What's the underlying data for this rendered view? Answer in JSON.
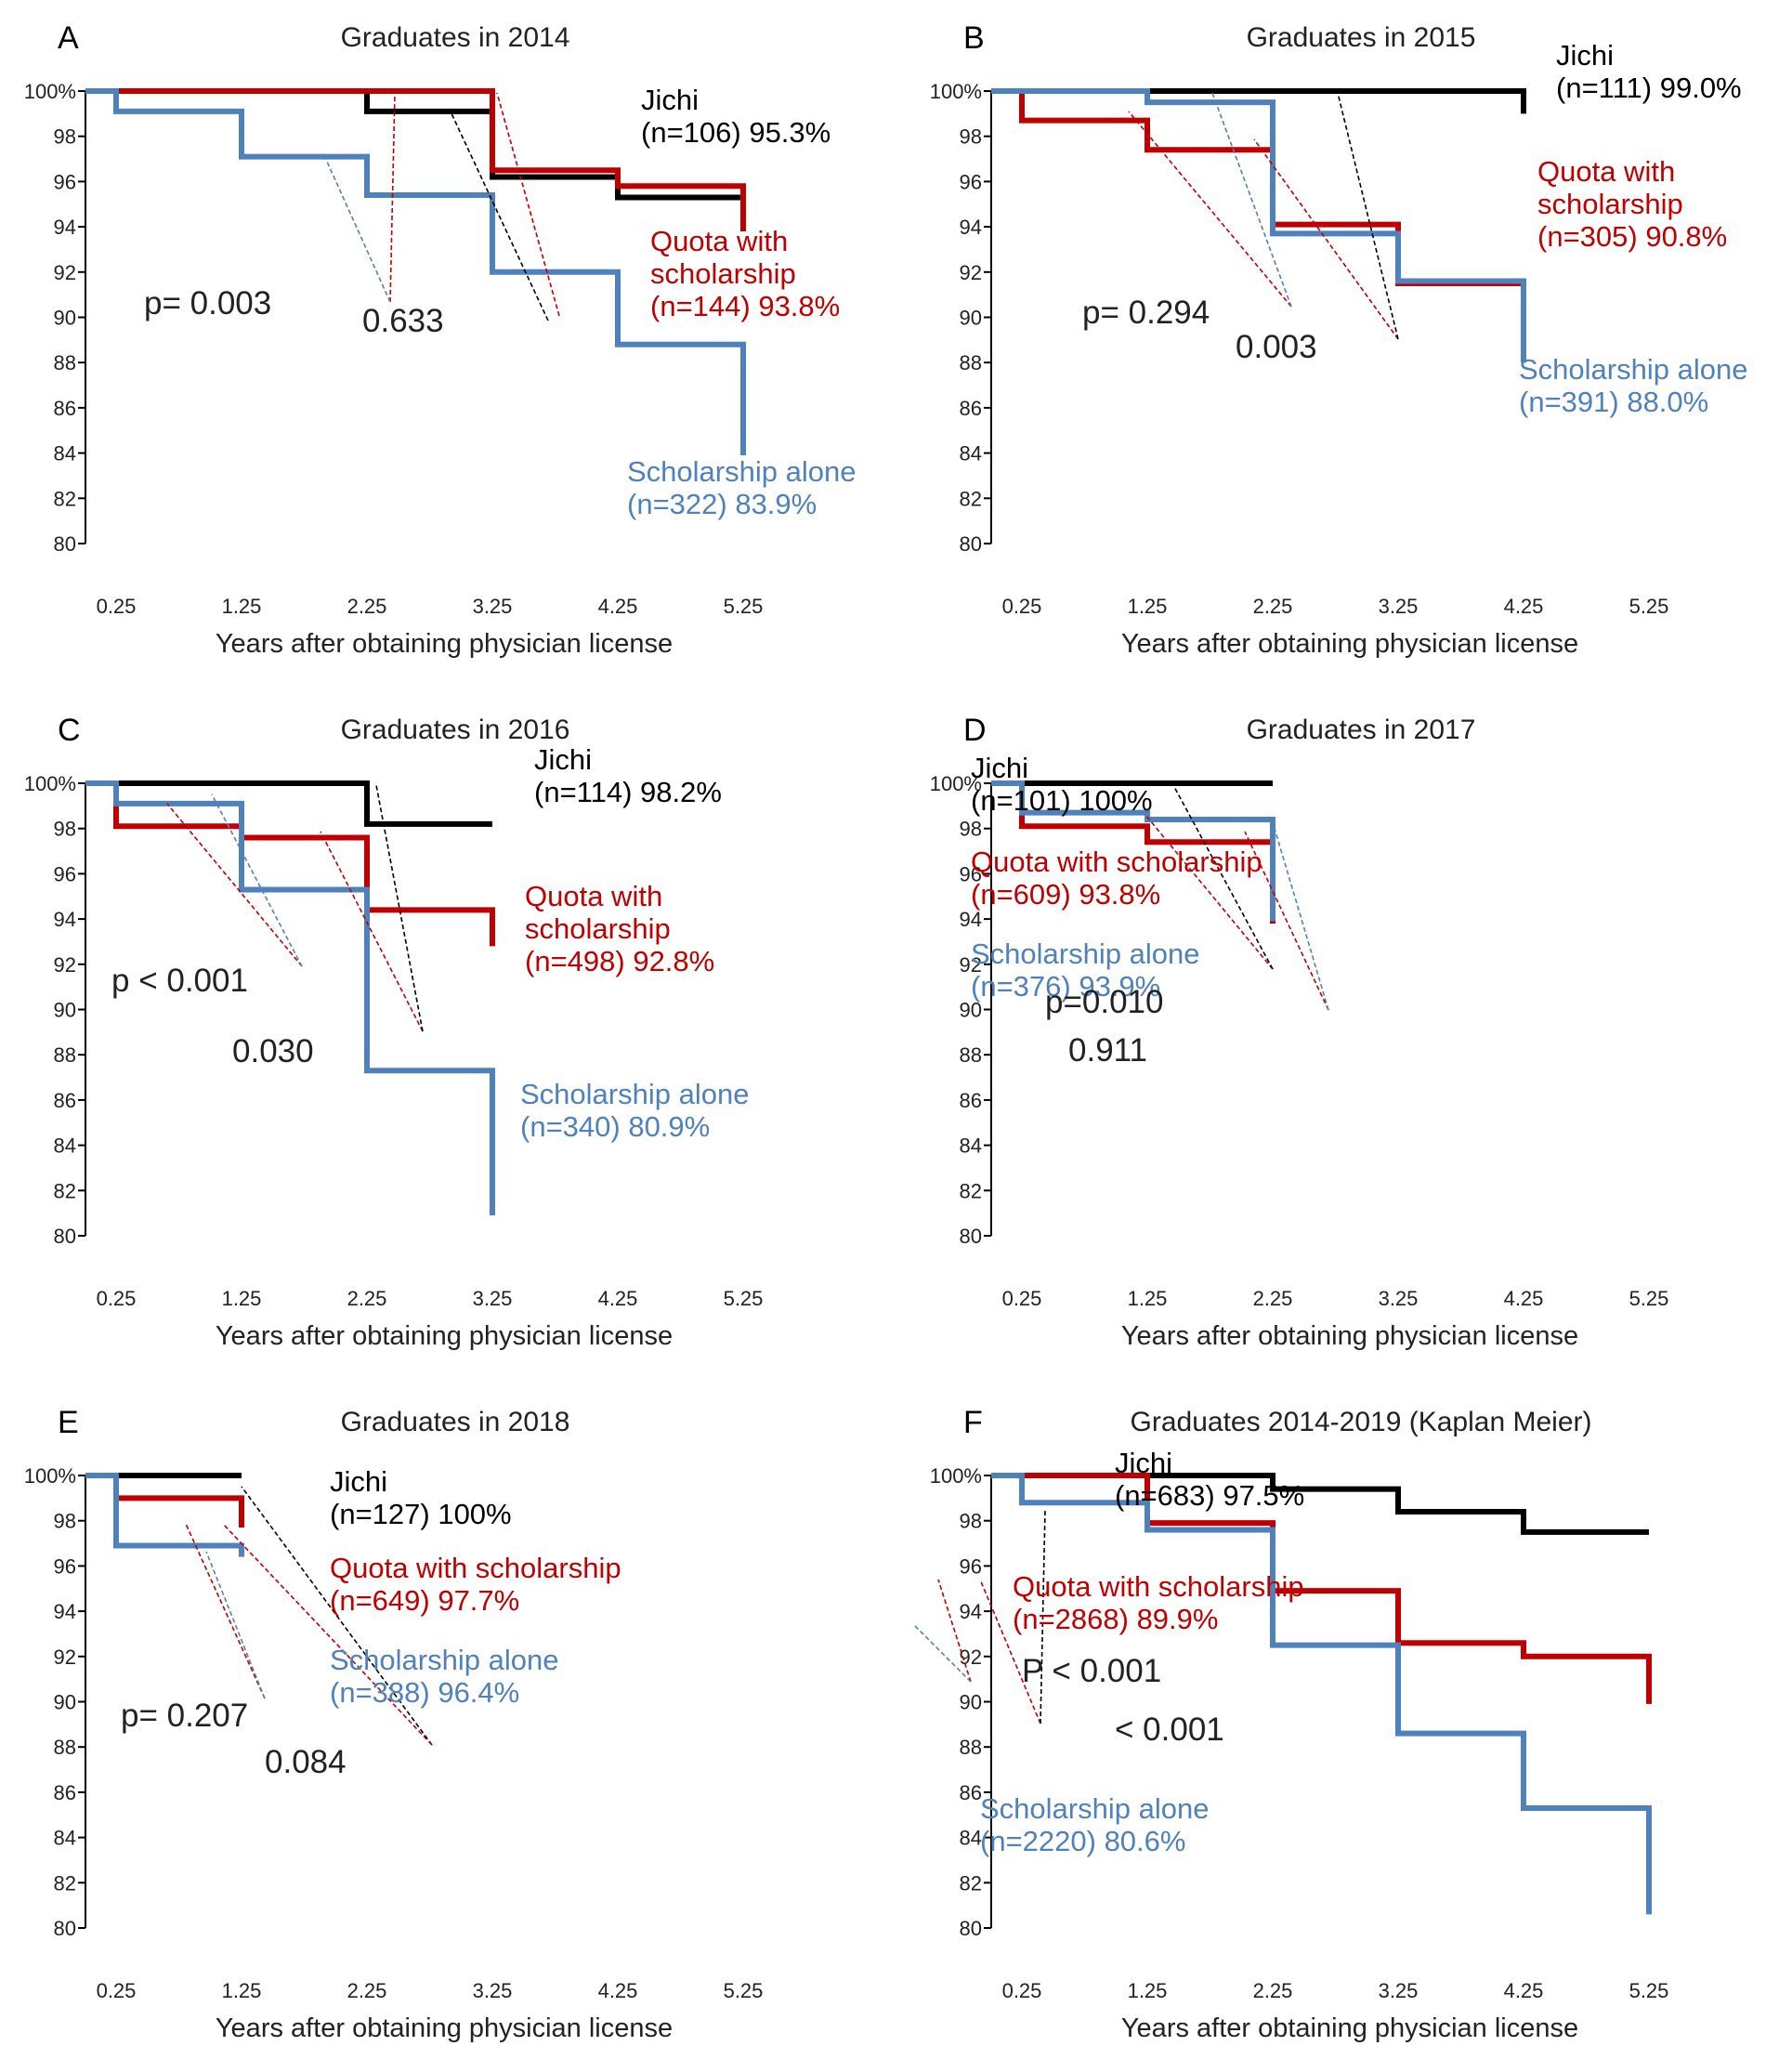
{
  "colors": {
    "jichi": "#000000",
    "quota": "#c00000",
    "scholarship": "#4f81bd"
  },
  "panels": [
    {
      "label": "A",
      "title": "Graduates in 2014",
      "chart_data": {
        "type": "line",
        "step": true,
        "xlabel": "Years after obtaining physician license",
        "ylabel": "",
        "xticks": [
          "0.25",
          "1.25",
          "2.25",
          "3.25",
          "4.25",
          "5.25"
        ],
        "yticks": [
          "100%",
          "98",
          "96",
          "94",
          "92",
          "90",
          "88",
          "86",
          "84",
          "82",
          "80"
        ],
        "xlim": [
          0.25,
          5.25
        ],
        "ylim": [
          80,
          100
        ],
        "series": [
          {
            "name": "Jichi",
            "color": "#000000",
            "x": [
              0,
              2.25,
              3.25,
              4.25,
              5.25
            ],
            "y": [
              100,
              99.1,
              96.2,
              95.3,
              95.3
            ]
          },
          {
            "name": "Quota with scholarship",
            "color": "#c00000",
            "x": [
              0,
              2.25,
              3.25,
              4.25,
              5.25
            ],
            "y": [
              100,
              100,
              96.5,
              95.8,
              93.8
            ]
          },
          {
            "name": "Scholarship alone",
            "color": "#4f81bd",
            "x": [
              0,
              0.25,
              1.25,
              2.25,
              3.25,
              4.25,
              5.25
            ],
            "y": [
              100,
              99.1,
              97.1,
              95.4,
              92.0,
              88.8,
              83.9
            ]
          }
        ],
        "annotations": [
          {
            "lines": [
              "Jichi",
              "(n=106) 95.3%"
            ],
            "color": "#000000"
          },
          {
            "lines": [
              "Quota with",
              "scholarship",
              "(n=144) 93.8%"
            ],
            "color": "#c00000"
          },
          {
            "lines": [
              "Scholarship alone",
              "(n=322) 83.9%"
            ],
            "color": "#4f81bd"
          }
        ],
        "pvalues": [
          "p= 0.003",
          "0.633"
        ]
      }
    },
    {
      "label": "B",
      "title": "Graduates in 2015",
      "chart_data": {
        "type": "line",
        "step": true,
        "xlabel": "Years after obtaining physician license",
        "ylabel": "",
        "xticks": [
          "0.25",
          "1.25",
          "2.25",
          "3.25",
          "4.25",
          "5.25"
        ],
        "yticks": [
          "100%",
          "98",
          "96",
          "94",
          "92",
          "90",
          "88",
          "86",
          "84",
          "82",
          "80"
        ],
        "xlim": [
          0.25,
          5.25
        ],
        "ylim": [
          80,
          100
        ],
        "series": [
          {
            "name": "Jichi",
            "color": "#000000",
            "x": [
              0,
              4.25
            ],
            "y": [
              100,
              99.0
            ]
          },
          {
            "name": "Quota with scholarship",
            "color": "#c00000",
            "x": [
              0,
              0.25,
              1.25,
              2.25,
              3.25,
              4.25
            ],
            "y": [
              100,
              98.7,
              97.4,
              94.1,
              91.5,
              90.8
            ]
          },
          {
            "name": "Scholarship alone",
            "color": "#4f81bd",
            "x": [
              0,
              1.25,
              2.25,
              3.25,
              4.25
            ],
            "y": [
              100,
              99.5,
              93.7,
              91.6,
              88.0
            ]
          }
        ],
        "annotations": [
          {
            "lines": [
              "Jichi",
              "(n=111) 99.0%"
            ],
            "color": "#000000"
          },
          {
            "lines": [
              "Quota with",
              "scholarship",
              "(n=305) 90.8%"
            ],
            "color": "#c00000"
          },
          {
            "lines": [
              "Scholarship alone",
              "(n=391) 88.0%"
            ],
            "color": "#4f81bd"
          }
        ],
        "pvalues": [
          "p= 0.294",
          "0.003"
        ]
      }
    },
    {
      "label": "C",
      "title": "Graduates in 2016",
      "chart_data": {
        "type": "line",
        "step": true,
        "xlabel": "Years after obtaining physician license",
        "ylabel": "",
        "xticks": [
          "0.25",
          "1.25",
          "2.25",
          "3.25",
          "4.25",
          "5.25"
        ],
        "yticks": [
          "100%",
          "98",
          "96",
          "94",
          "92",
          "90",
          "88",
          "86",
          "84",
          "82",
          "80"
        ],
        "xlim": [
          0.25,
          5.25
        ],
        "ylim": [
          80,
          100
        ],
        "series": [
          {
            "name": "Jichi",
            "color": "#000000",
            "x": [
              0,
              2.25,
              3.25
            ],
            "y": [
              100,
              98.2,
              98.2
            ]
          },
          {
            "name": "Quota with scholarship",
            "color": "#c00000",
            "x": [
              0,
              0.25,
              1.25,
              2.25,
              3.25
            ],
            "y": [
              100,
              98.1,
              97.6,
              94.4,
              92.8
            ]
          },
          {
            "name": "Scholarship alone",
            "color": "#4f81bd",
            "x": [
              0,
              0.25,
              1.25,
              2.25,
              3.25
            ],
            "y": [
              100,
              99.1,
              95.3,
              87.3,
              80.9
            ]
          }
        ],
        "annotations": [
          {
            "lines": [
              "Jichi",
              "(n=114) 98.2%"
            ],
            "color": "#000000"
          },
          {
            "lines": [
              "Quota with",
              "scholarship",
              "(n=498) 92.8%"
            ],
            "color": "#c00000"
          },
          {
            "lines": [
              "Scholarship alone",
              "(n=340) 80.9%"
            ],
            "color": "#4f81bd"
          }
        ],
        "pvalues": [
          "p < 0.001",
          "0.030"
        ]
      }
    },
    {
      "label": "D",
      "title": "Graduates in 2017",
      "chart_data": {
        "type": "line",
        "step": true,
        "xlabel": "Years after obtaining physician license",
        "ylabel": "",
        "xticks": [
          "0.25",
          "1.25",
          "2.25",
          "3.25",
          "4.25",
          "5.25"
        ],
        "yticks": [
          "100%",
          "98",
          "96",
          "94",
          "92",
          "90",
          "88",
          "86",
          "84",
          "82",
          "80"
        ],
        "xlim": [
          0.25,
          5.25
        ],
        "ylim": [
          80,
          100
        ],
        "series": [
          {
            "name": "Jichi",
            "color": "#000000",
            "x": [
              0,
              2.25
            ],
            "y": [
              100,
              100
            ]
          },
          {
            "name": "Quota with scholarship",
            "color": "#c00000",
            "x": [
              0,
              0.25,
              1.25,
              2.25
            ],
            "y": [
              100,
              98.1,
              97.4,
              93.8
            ]
          },
          {
            "name": "Scholarship alone",
            "color": "#4f81bd",
            "x": [
              0,
              0.25,
              1.25,
              2.25
            ],
            "y": [
              100,
              98.7,
              98.4,
              93.9
            ]
          }
        ],
        "annotations": [
          {
            "lines": [
              "Jichi",
              "(n=101) 100%"
            ],
            "color": "#000000"
          },
          {
            "lines": [
              "Quota with scholarship",
              "(n=609) 93.8%"
            ],
            "color": "#c00000"
          },
          {
            "lines": [
              "Scholarship alone",
              "(n=376) 93.9%"
            ],
            "color": "#4f81bd"
          }
        ],
        "pvalues": [
          "p=0.010",
          "0.911"
        ]
      }
    },
    {
      "label": "E",
      "title": "Graduates in 2018",
      "chart_data": {
        "type": "line",
        "step": true,
        "xlabel": "Years after obtaining physician license",
        "ylabel": "",
        "xticks": [
          "0.25",
          "1.25",
          "2.25",
          "3.25",
          "4.25",
          "5.25"
        ],
        "yticks": [
          "100%",
          "98",
          "96",
          "94",
          "92",
          "90",
          "88",
          "86",
          "84",
          "82",
          "80"
        ],
        "xlim": [
          0.25,
          5.25
        ],
        "ylim": [
          80,
          100
        ],
        "series": [
          {
            "name": "Jichi",
            "color": "#000000",
            "x": [
              0,
              1.25
            ],
            "y": [
              100,
              100
            ]
          },
          {
            "name": "Quota with scholarship",
            "color": "#c00000",
            "x": [
              0,
              0.25,
              1.25
            ],
            "y": [
              100,
              99.0,
              97.7
            ]
          },
          {
            "name": "Scholarship alone",
            "color": "#4f81bd",
            "x": [
              0,
              0.25,
              1.25
            ],
            "y": [
              100,
              96.9,
              96.4
            ]
          }
        ],
        "annotations": [
          {
            "lines": [
              "Jichi",
              "(n=127) 100%"
            ],
            "color": "#000000"
          },
          {
            "lines": [
              "Quota with scholarship",
              "(n=649) 97.7%"
            ],
            "color": "#c00000"
          },
          {
            "lines": [
              "Scholarship alone",
              "(n=388) 96.4%"
            ],
            "color": "#4f81bd"
          }
        ],
        "pvalues": [
          "p= 0.207",
          "0.084"
        ]
      }
    },
    {
      "label": "F",
      "title": "Graduates 2014-2019 (Kaplan Meier)",
      "chart_data": {
        "type": "line",
        "step": true,
        "xlabel": "Years after obtaining physician license",
        "ylabel": "",
        "xticks": [
          "0.25",
          "1.25",
          "2.25",
          "3.25",
          "4.25",
          "5.25"
        ],
        "yticks": [
          "100%",
          "98",
          "96",
          "94",
          "92",
          "90",
          "88",
          "86",
          "84",
          "82",
          "80"
        ],
        "xlim": [
          0.25,
          5.25
        ],
        "ylim": [
          80,
          100
        ],
        "series": [
          {
            "name": "Jichi",
            "color": "#000000",
            "x": [
              0,
              2.25,
              3.25,
              4.25,
              5.25
            ],
            "y": [
              100,
              99.4,
              98.4,
              97.5,
              97.5
            ]
          },
          {
            "name": "Quota with scholarship",
            "color": "#c00000",
            "x": [
              0,
              1.25,
              2.25,
              3.25,
              4.25,
              5.25
            ],
            "y": [
              100,
              97.9,
              94.9,
              92.6,
              92.0,
              89.9
            ]
          },
          {
            "name": "Scholarship alone",
            "color": "#4f81bd",
            "x": [
              0,
              0.25,
              1.25,
              2.25,
              3.25,
              4.25,
              5.25
            ],
            "y": [
              100,
              98.8,
              97.6,
              92.5,
              88.6,
              85.3,
              80.6
            ]
          }
        ],
        "annotations": [
          {
            "lines": [
              "Jichi",
              "(n=683) 97.5%"
            ],
            "color": "#000000"
          },
          {
            "lines": [
              "Quota with scholarship",
              "(n=2868) 89.9%"
            ],
            "color": "#c00000"
          },
          {
            "lines": [
              "Scholarship alone",
              "(n=2220) 80.6%"
            ],
            "color": "#4f81bd"
          }
        ],
        "pvalues": [
          "P < 0.001",
          "< 0.001"
        ]
      }
    }
  ]
}
